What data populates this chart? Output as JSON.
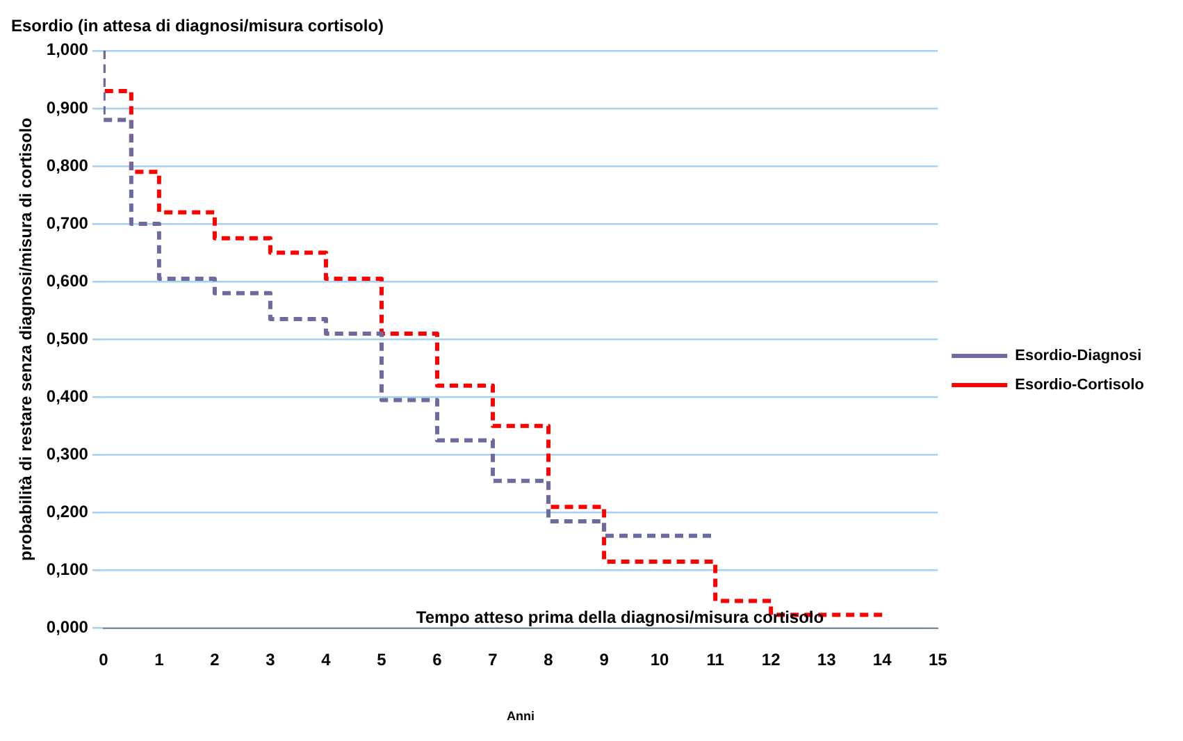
{
  "chart_data": {
    "type": "step",
    "title": "Esordio (in attesa di diagnosi/misura cortisolo)",
    "xlabel": "Anni",
    "ylabel": "probabilità di restare senza diagnosi/misura di cortisolo",
    "annotations": [
      "Tempo atteso prima della diagnosi/misura cortisolo"
    ],
    "series": [
      {
        "name": "Esordio-Diagnosi",
        "color": "#6b6b9e",
        "x": [
          0,
          0.5,
          1,
          2,
          3,
          4,
          5,
          6,
          7,
          8,
          9,
          10,
          11
        ],
        "values": [
          1.0,
          0.88,
          0.7,
          0.605,
          0.58,
          0.535,
          0.51,
          0.395,
          0.325,
          0.255,
          0.185,
          0.16,
          0.16
        ]
      },
      {
        "name": "Esordio-Cortisolo",
        "color": "#ff0000",
        "x": [
          0,
          0.5,
          1,
          2,
          3,
          4,
          5,
          6,
          7,
          8,
          9,
          11,
          12,
          13,
          14
        ],
        "values": [
          1.0,
          0.93,
          0.79,
          0.72,
          0.675,
          0.65,
          0.605,
          0.51,
          0.42,
          0.35,
          0.21,
          0.115,
          0.047,
          0.023,
          0.023
        ]
      }
    ],
    "xlim": [
      0,
      15
    ],
    "xticks": [
      0,
      1,
      2,
      3,
      4,
      5,
      6,
      7,
      8,
      9,
      10,
      11,
      12,
      13,
      14,
      15
    ],
    "ylim": [
      0,
      1
    ],
    "yticks": [
      {
        "value": 0,
        "label": "0,000"
      },
      {
        "value": 0.1,
        "label": "0,100"
      },
      {
        "value": 0.2,
        "label": "0,200"
      },
      {
        "value": 0.3,
        "label": "0,300"
      },
      {
        "value": 0.4,
        "label": "0,400"
      },
      {
        "value": 0.5,
        "label": "0,500"
      },
      {
        "value": 0.6,
        "label": "0,600"
      },
      {
        "value": 0.7,
        "label": "0,700"
      },
      {
        "value": 0.8,
        "label": "0,800"
      },
      {
        "value": 0.9,
        "label": "0,900"
      },
      {
        "value": 1,
        "label": "1,000"
      }
    ],
    "grid": "y",
    "legend": "right",
    "line_style": "dashed",
    "marker": "none"
  }
}
